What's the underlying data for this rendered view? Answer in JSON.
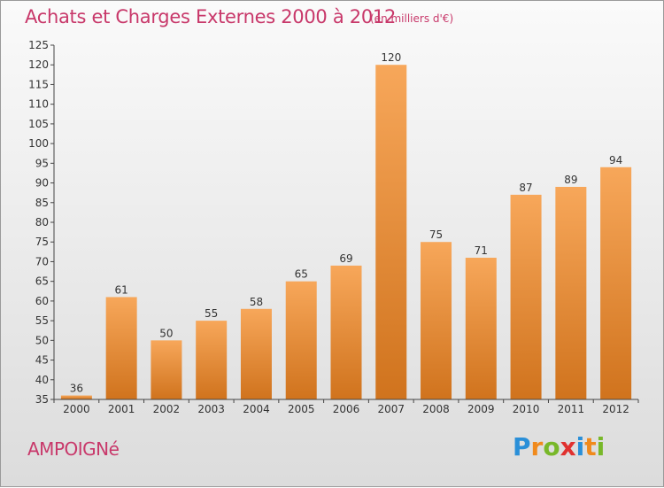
{
  "title": "Achats et Charges Externes 2000 à 2012",
  "unit_note": "(en milliers d'€)",
  "commune": "AMPOIGNé",
  "logo": {
    "text": "Proxiti",
    "letters": [
      {
        "ch": "P",
        "color": "#2a8fd8"
      },
      {
        "ch": "r",
        "color": "#f08a1c"
      },
      {
        "ch": "o",
        "color": "#78b829"
      },
      {
        "ch": "x",
        "color": "#e0312f"
      },
      {
        "ch": "i",
        "color": "#2a8fd8"
      },
      {
        "ch": "t",
        "color": "#f08a1c"
      },
      {
        "ch": "i",
        "color": "#78b829"
      }
    ]
  },
  "colors": {
    "bar_light": "#f7a75a",
    "bar_dark": "#d0731d",
    "axis": "#444444",
    "grid": "#bfbfbf",
    "text": "#333333",
    "title": "#c8386a"
  },
  "chart_data": {
    "type": "bar",
    "categories": [
      "2000",
      "2001",
      "2002",
      "2003",
      "2004",
      "2005",
      "2006",
      "2007",
      "2008",
      "2009",
      "2010",
      "2011",
      "2012"
    ],
    "values": [
      36,
      61,
      50,
      55,
      58,
      65,
      69,
      120,
      75,
      71,
      87,
      89,
      94
    ],
    "data_labels": [
      "36",
      "61",
      "50",
      "55",
      "58",
      "65",
      "69",
      "120",
      "75",
      "71",
      "87",
      "89",
      "94"
    ],
    "ylim": [
      35,
      125
    ],
    "yticks": [
      35,
      40,
      45,
      50,
      55,
      60,
      65,
      70,
      75,
      80,
      85,
      90,
      95,
      100,
      105,
      110,
      115,
      120,
      125
    ],
    "grid": false,
    "xlabel": "",
    "ylabel": ""
  }
}
